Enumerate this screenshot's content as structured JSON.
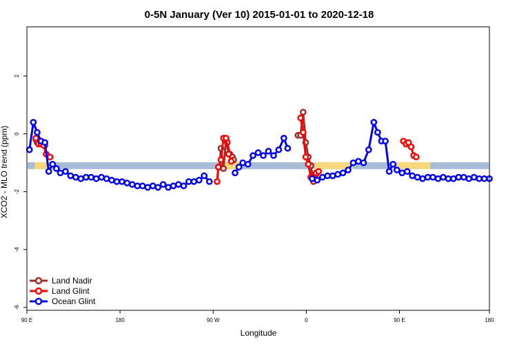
{
  "chart_data": {
    "type": "line",
    "title": "0-5N January (Ver 10)   2015-01-01 to 2020-12-18",
    "xlabel": "Longitude",
    "ylabel": "XCO2 - MLO trend (ppm)",
    "xlim": [
      90,
      450
    ],
    "ylim": [
      -6.1,
      3.7
    ],
    "x_ticks": [
      {
        "value": 90,
        "label": "90 E"
      },
      {
        "value": 162.5,
        "label": "180"
      },
      {
        "value": 235,
        "label": "90 W"
      },
      {
        "value": 307.5,
        "label": "0"
      },
      {
        "value": 380,
        "label": "90 E"
      },
      {
        "value": 450,
        "label": "180"
      }
    ],
    "y_ticks": [
      {
        "value": -6,
        "label": "-6"
      },
      {
        "value": -4,
        "label": "-4"
      },
      {
        "value": -2,
        "label": "-2"
      },
      {
        "value": 0,
        "label": "0"
      },
      {
        "value": 2,
        "label": "2"
      }
    ],
    "band": {
      "y_center": -1.1,
      "base_color": "#a8bcd8",
      "land_color": "#f7d87e",
      "land_segments": [
        [
          96,
          109
        ],
        [
          242,
          257
        ],
        [
          314,
          344
        ],
        [
          371,
          373
        ],
        [
          373,
          404
        ]
      ]
    },
    "series": [
      {
        "name": "Land Nadir",
        "color": "#a52a2a",
        "points": [
          [
            97,
            -0.2
          ],
          [
            98,
            -0.3
          ],
          [
            100,
            -0.3
          ],
          [
            102,
            -0.35
          ],
          [
            104,
            -0.4
          ],
          [
            240,
            -1.15
          ],
          [
            241,
            -0.5
          ],
          [
            243,
            -1.2
          ],
          [
            245,
            -0.2
          ],
          [
            246,
            -0.3
          ],
          [
            248,
            -0.7
          ],
          [
            250,
            -0.8
          ],
          [
            251,
            -0.9
          ],
          [
            301,
            -0.05
          ],
          [
            303,
            -0.05
          ],
          [
            305,
            0.75
          ],
          [
            307,
            -0.3
          ],
          [
            309,
            -0.8
          ],
          [
            311,
            -1.1
          ],
          [
            313,
            -1.65
          ],
          [
            315,
            -1.4
          ]
        ]
      },
      {
        "name": "Land Glint",
        "color": "#ff0000",
        "points": [
          [
            97,
            -0.15
          ],
          [
            99,
            -0.35
          ],
          [
            101,
            -0.35
          ],
          [
            103,
            -0.4
          ],
          [
            105,
            -0.7
          ],
          [
            108,
            -0.8
          ],
          [
            238,
            -1.65
          ],
          [
            239,
            -1.15
          ],
          [
            241,
            -0.9
          ],
          [
            243,
            -0.15
          ],
          [
            245,
            -0.15
          ],
          [
            247,
            -0.7
          ],
          [
            249,
            -0.95
          ],
          [
            303,
            0.55
          ],
          [
            305,
            0.05
          ],
          [
            307,
            -0.8
          ],
          [
            309,
            -1.05
          ],
          [
            311,
            -1.5
          ],
          [
            313,
            -1.55
          ],
          [
            315,
            -1.35
          ],
          [
            317,
            -1.3
          ],
          [
            383,
            -0.25
          ],
          [
            385,
            -0.35
          ],
          [
            387,
            -0.3
          ],
          [
            389,
            -0.45
          ],
          [
            391,
            -0.75
          ],
          [
            393,
            -0.8
          ]
        ]
      },
      {
        "name": "Ocean Glint",
        "color": "#0000ee",
        "points": [
          [
            92,
            -0.55
          ],
          [
            95,
            0.4
          ],
          [
            98,
            0.05
          ],
          [
            101,
            -0.25
          ],
          [
            104,
            -0.3
          ],
          [
            107,
            -1.3
          ],
          [
            110,
            -1.05
          ],
          [
            113,
            -1.2
          ],
          [
            116,
            -1.35
          ],
          [
            120,
            -1.3
          ],
          [
            124,
            -1.45
          ],
          [
            128,
            -1.5
          ],
          [
            132,
            -1.55
          ],
          [
            136,
            -1.5
          ],
          [
            140,
            -1.5
          ],
          [
            144,
            -1.55
          ],
          [
            148,
            -1.5
          ],
          [
            152,
            -1.55
          ],
          [
            156,
            -1.6
          ],
          [
            160,
            -1.65
          ],
          [
            164,
            -1.65
          ],
          [
            168,
            -1.7
          ],
          [
            172,
            -1.75
          ],
          [
            176,
            -1.8
          ],
          [
            180,
            -1.8
          ],
          [
            184,
            -1.85
          ],
          [
            188,
            -1.8
          ],
          [
            192,
            -1.85
          ],
          [
            196,
            -1.75
          ],
          [
            200,
            -1.85
          ],
          [
            204,
            -1.8
          ],
          [
            208,
            -1.75
          ],
          [
            212,
            -1.8
          ],
          [
            216,
            -1.65
          ],
          [
            220,
            -1.65
          ],
          [
            224,
            -1.6
          ],
          [
            228,
            -1.45
          ],
          [
            232,
            -1.65
          ],
          [
            252,
            -1.35
          ],
          [
            255,
            -1.15
          ],
          [
            258,
            -1.0
          ],
          [
            262,
            -1.05
          ],
          [
            266,
            -0.75
          ],
          [
            270,
            -0.65
          ],
          [
            274,
            -0.75
          ],
          [
            278,
            -0.6
          ],
          [
            282,
            -0.75
          ],
          [
            286,
            -0.55
          ],
          [
            290,
            -0.15
          ],
          [
            293,
            -0.5
          ],
          [
            312,
            -1.55
          ],
          [
            316,
            -1.6
          ],
          [
            320,
            -1.5
          ],
          [
            324,
            -1.45
          ],
          [
            328,
            -1.45
          ],
          [
            332,
            -1.4
          ],
          [
            336,
            -1.35
          ],
          [
            340,
            -1.25
          ],
          [
            344,
            -1.0
          ],
          [
            348,
            -0.95
          ],
          [
            352,
            -1.0
          ],
          [
            356,
            -0.55
          ],
          [
            360,
            0.4
          ],
          [
            363,
            0.05
          ],
          [
            366,
            -0.25
          ],
          [
            369,
            -0.25
          ],
          [
            372,
            -1.3
          ],
          [
            375,
            -1.05
          ],
          [
            378,
            -1.25
          ],
          [
            382,
            -1.35
          ],
          [
            386,
            -1.3
          ],
          [
            390,
            -1.45
          ],
          [
            394,
            -1.5
          ],
          [
            398,
            -1.55
          ],
          [
            402,
            -1.5
          ],
          [
            406,
            -1.5
          ],
          [
            410,
            -1.55
          ],
          [
            414,
            -1.5
          ],
          [
            418,
            -1.55
          ],
          [
            422,
            -1.55
          ],
          [
            426,
            -1.5
          ],
          [
            430,
            -1.5
          ],
          [
            434,
            -1.55
          ],
          [
            438,
            -1.5
          ],
          [
            442,
            -1.55
          ],
          [
            446,
            -1.55
          ],
          [
            450,
            -1.55
          ]
        ]
      }
    ],
    "legend": {
      "position": "bottom-left"
    },
    "grid": false
  }
}
